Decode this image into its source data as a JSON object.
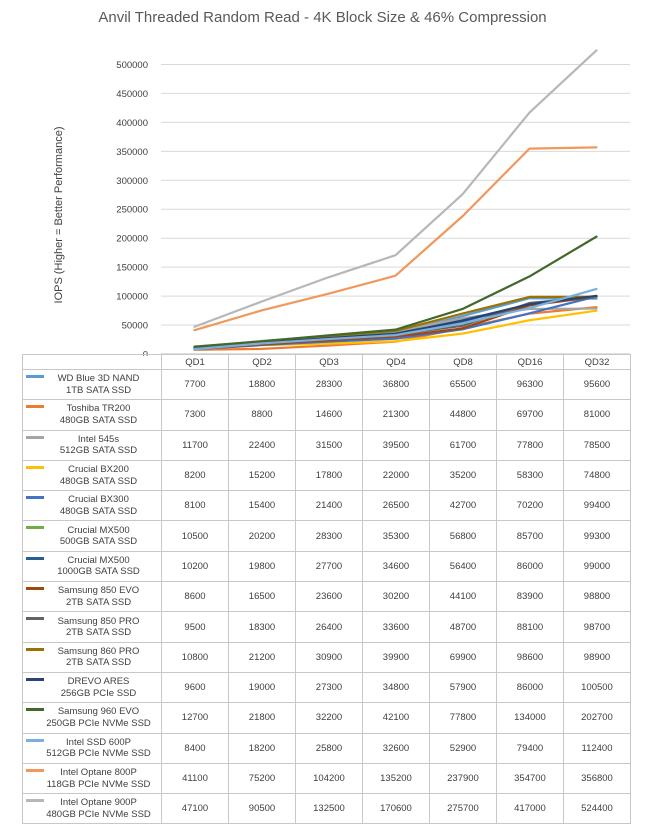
{
  "chart_data": {
    "type": "line",
    "title": "Anvil Threaded Random Read - 4K Block Size & 46% Compression",
    "ylabel": "IOPS (Higher = Better Performance)",
    "xlabel": "",
    "categories": [
      "QD1",
      "QD2",
      "QD3",
      "QD4",
      "QD8",
      "QD16",
      "QD32"
    ],
    "ylim": [
      0,
      500000
    ],
    "yticks": [
      "0",
      "50000",
      "100000",
      "150000",
      "200000",
      "250000",
      "300000",
      "350000",
      "400000",
      "450000",
      "500000"
    ],
    "grid": true,
    "legend_placement": "data table",
    "series": [
      {
        "name": "WD Blue 3D NAND",
        "sub": "1TB SATA SSD",
        "color": "#5b9bd5",
        "values": [
          7700,
          18800,
          28300,
          36800,
          65500,
          96300,
          95600
        ]
      },
      {
        "name": "Toshiba TR200",
        "sub": "480GB SATA SSD",
        "color": "#ed7d31",
        "values": [
          7300,
          8800,
          14600,
          21300,
          44800,
          69700,
          81000
        ]
      },
      {
        "name": "Intel 545s",
        "sub": "512GB SATA SSD",
        "color": "#a5a5a5",
        "values": [
          11700,
          22400,
          31500,
          39500,
          61700,
          77800,
          78500
        ]
      },
      {
        "name": "Crucial BX200",
        "sub": "480GB SATA SSD",
        "color": "#ffc000",
        "values": [
          8200,
          15200,
          17800,
          22000,
          35200,
          58300,
          74800
        ]
      },
      {
        "name": "Crucial BX300",
        "sub": "480GB SATA SSD",
        "color": "#4472c4",
        "values": [
          8100,
          15400,
          21400,
          26500,
          42700,
          70200,
          99400
        ]
      },
      {
        "name": "Crucial MX500",
        "sub": "500GB SATA SSD",
        "color": "#70ad47",
        "values": [
          10500,
          20200,
          28300,
          35300,
          56800,
          85700,
          99300
        ]
      },
      {
        "name": "Crucial MX500",
        "sub": "1000GB SATA SSD",
        "color": "#255e91",
        "values": [
          10200,
          19800,
          27700,
          34600,
          56400,
          86000,
          99000
        ]
      },
      {
        "name": "Samsung 850 EVO",
        "sub": "2TB SATA SSD",
        "color": "#9e480e",
        "values": [
          8600,
          16500,
          23600,
          30200,
          44100,
          83900,
          98800
        ]
      },
      {
        "name": "Samsung 850 PRO",
        "sub": "2TB SATA SSD",
        "color": "#636363",
        "values": [
          9500,
          18300,
          26400,
          33600,
          48700,
          88100,
          98700
        ]
      },
      {
        "name": "Samsung 860 PRO",
        "sub": "2TB SATA SSD",
        "color": "#997300",
        "values": [
          10800,
          21200,
          30900,
          39900,
          69900,
          98600,
          98900
        ]
      },
      {
        "name": "DREVO ARES",
        "sub": "256GB PCIe SSD",
        "color": "#264478",
        "values": [
          9600,
          19000,
          27300,
          34800,
          57900,
          86000,
          100500
        ]
      },
      {
        "name": "Samsung 960 EVO",
        "sub": "250GB PCIe NVMe SSD",
        "color": "#43682b",
        "values": [
          12700,
          21800,
          32200,
          42100,
          77800,
          134000,
          202700
        ]
      },
      {
        "name": "Intel SSD 600P",
        "sub": "512GB PCIe NVMe SSD",
        "color": "#7cafdd",
        "values": [
          8400,
          18200,
          25800,
          32600,
          52900,
          79400,
          112400
        ]
      },
      {
        "name": "Intel Optane 800P",
        "sub": "118GB PCIe NVMe SSD",
        "color": "#f1975a",
        "values": [
          41100,
          75200,
          104200,
          135200,
          237900,
          354700,
          356800
        ]
      },
      {
        "name": "Intel Optane 900P",
        "sub": "480GB PCIe NVMe SSD",
        "color": "#b7b7b7",
        "values": [
          47100,
          90500,
          132500,
          170600,
          275700,
          417000,
          524400
        ]
      }
    ]
  }
}
